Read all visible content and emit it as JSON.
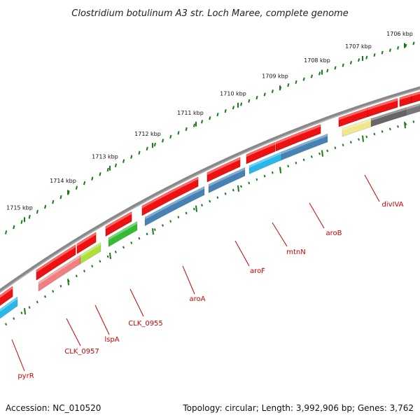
{
  "title": "Clostridium botulinum A3 str. Loch Maree, complete genome",
  "footer": {
    "accession": "Accession: NC_010520",
    "topology": "Topology: circular; Length: 3,992,906 bp; Genes: 3,762"
  },
  "ruler": [
    "1715 kbp",
    "1714 kbp",
    "1713 kbp",
    "1712 kbp",
    "1711 kbp",
    "1710 kbp",
    "1709 kbp",
    "1708 kbp",
    "1707 kbp",
    "1706 kbp"
  ],
  "colors": {
    "backbone": "#888888",
    "forward": "#ee1111",
    "tick": "#1a7a1a",
    "label": "#cc0000"
  },
  "genes": [
    {
      "label": "pyrR",
      "color": "#29b6ea"
    },
    {
      "label": "CLK_0957",
      "color": "#f08080"
    },
    {
      "label": "lspA",
      "color": "#aee03a"
    },
    {
      "label": "CLK_0955",
      "color": "#33bb33"
    },
    {
      "label": "aroA",
      "color": "#4682b4"
    },
    {
      "label": "aroF",
      "color": "#4682b4"
    },
    {
      "label": "mtnN",
      "color": "#29b6ea"
    },
    {
      "label": "aroB",
      "color": "#4682b4"
    },
    {
      "label": "divIVA",
      "color": "#f0e68c"
    }
  ]
}
